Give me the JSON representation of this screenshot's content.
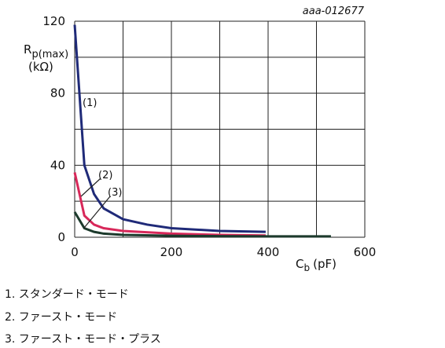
{
  "chart_data": {
    "type": "line",
    "id_label": "aaa-012677",
    "y_label": "R",
    "y_label_sub": "p(max)",
    "y_label_unit": "(kΩ)",
    "x_label": "C",
    "x_label_sub": "b",
    "x_label_unit": "(pF)",
    "xlim": [
      0,
      600
    ],
    "xticks": [
      0,
      200,
      400,
      600
    ],
    "xgrid": [
      0,
      100,
      200,
      300,
      400,
      500,
      600
    ],
    "ylim": [
      0,
      120
    ],
    "yticks": [
      0,
      40,
      80,
      120
    ],
    "ygrid": [
      0,
      20,
      40,
      60,
      80,
      100,
      120
    ],
    "grid": true,
    "series": [
      {
        "name": "(1)",
        "color": "#1f2a78",
        "x": [
          0,
          20,
          40,
          60,
          80,
          100,
          150,
          200,
          300,
          395
        ],
        "values": [
          118,
          40,
          24,
          16,
          13,
          10,
          7,
          5,
          3.5,
          3
        ]
      },
      {
        "name": "(2)",
        "color": "#d8285a",
        "x": [
          0,
          20,
          40,
          60,
          100,
          200,
          300,
          395
        ],
        "values": [
          36,
          12,
          7,
          5,
          3.5,
          2,
          1.3,
          1
        ]
      },
      {
        "name": "(3)",
        "color": "#1c3a2c",
        "x": [
          0,
          20,
          40,
          60,
          100,
          200,
          300,
          400,
          530
        ],
        "values": [
          14,
          5,
          3,
          2,
          1.3,
          0.8,
          0.6,
          0.5,
          0.5
        ]
      }
    ]
  },
  "notes": [
    "1. スタンダード・モード",
    "2. ファースト・モード",
    "3. ファースト・モード・プラス"
  ]
}
